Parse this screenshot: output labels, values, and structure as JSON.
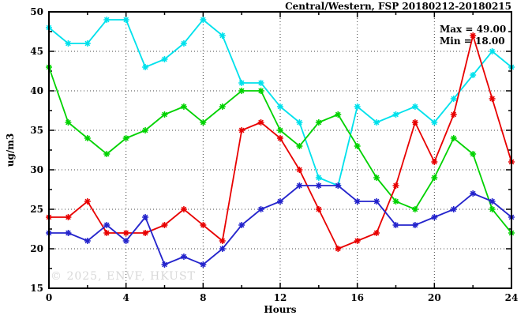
{
  "title": "Central/Western, FSP 20180212-20180215",
  "annotation": {
    "max_label": "Max = 49.00",
    "min_label": "Min = 18.00"
  },
  "watermark": "© 2025, ENVF, HKUST",
  "chart_data": {
    "type": "line",
    "title": "Central/Western, FSP 20180212-20180215",
    "xlabel": "Hours",
    "ylabel": "ug/m3",
    "xlim": [
      0,
      24
    ],
    "ylim": [
      15,
      50
    ],
    "x_major_ticks": [
      0,
      4,
      8,
      12,
      16,
      20,
      24
    ],
    "x_minor_ticks": [
      2,
      6,
      10,
      14,
      18,
      22
    ],
    "y_major_ticks": [
      15,
      20,
      25,
      30,
      35,
      40,
      45,
      50
    ],
    "y_minor_ticks": [
      17.5,
      22.5,
      27.5,
      32.5,
      37.5,
      42.5,
      47.5
    ],
    "grid": "dotted",
    "legend_position": "none",
    "max_value": 49.0,
    "min_value": 18.0,
    "x": [
      0,
      1,
      2,
      3,
      4,
      5,
      6,
      7,
      8,
      9,
      10,
      11,
      12,
      13,
      14,
      15,
      16,
      17,
      18,
      19,
      20,
      21,
      22,
      23,
      24
    ],
    "series": [
      {
        "name": "cyan-series",
        "color": "#00e1ec",
        "values": [
          48,
          46,
          46,
          49,
          49,
          43,
          44,
          46,
          49,
          47,
          41,
          41,
          38,
          36,
          29,
          28,
          38,
          36,
          37,
          38,
          36,
          39,
          42,
          45,
          43
        ]
      },
      {
        "name": "green-series",
        "color": "#00d200",
        "values": [
          43,
          36,
          34,
          32,
          34,
          35,
          37,
          38,
          36,
          38,
          40,
          40,
          35,
          33,
          36,
          37,
          33,
          29,
          26,
          25,
          29,
          34,
          32,
          25,
          22
        ]
      },
      {
        "name": "red-series",
        "color": "#e80000",
        "values": [
          24,
          24,
          26,
          22,
          22,
          22,
          23,
          25,
          23,
          21,
          35,
          36,
          34,
          30,
          25,
          20,
          21,
          22,
          28,
          36,
          31,
          37,
          47,
          39,
          31
        ]
      },
      {
        "name": "blue-series",
        "color": "#2424cc",
        "values": [
          22,
          22,
          21,
          23,
          21,
          24,
          18,
          19,
          18,
          20,
          23,
          25,
          26,
          28,
          28,
          28,
          26,
          26,
          23,
          23,
          24,
          25,
          27,
          26,
          24
        ]
      }
    ]
  },
  "colors": {
    "axis": "#000000",
    "grid": "#444444",
    "background": "#ffffff",
    "watermark_gray": "#d8d8d8"
  }
}
